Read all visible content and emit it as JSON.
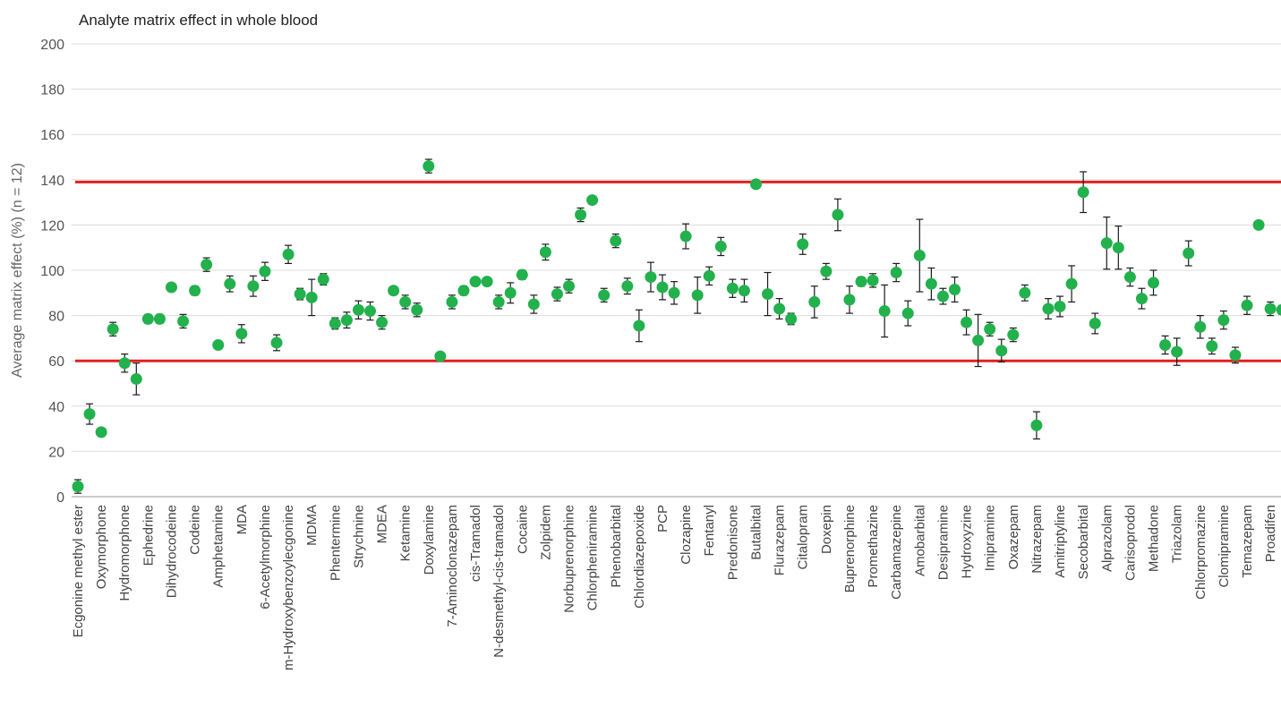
{
  "chart_data": {
    "type": "scatter",
    "title": "Analyte matrix effect in whole blood",
    "ylabel": "Average matrix effect (%) (n = 12)",
    "xlabel": "",
    "ylim": [
      0,
      200
    ],
    "yticks": [
      0,
      20,
      40,
      60,
      80,
      100,
      120,
      140,
      160,
      180,
      200
    ],
    "grid": true,
    "legend": "none",
    "point_color": "#22b14c",
    "reference_line_color": "#e02020",
    "reference_lines": [
      60,
      139
    ],
    "label_every": 2,
    "categories": [
      "Ecgonine methyl ester",
      "",
      "Oxymorphone",
      "",
      "Hydromorphone",
      "",
      "Ephedrine",
      "",
      "Dihydrocodeine",
      "",
      "Codeine",
      "",
      "Amphetamine",
      "",
      "MDA",
      "",
      "6-Acetylmorphine",
      "",
      "m-Hydroxybenzoylecgonine",
      "",
      "MDMA",
      "",
      "Phentermine",
      "",
      "Strychnine",
      "",
      "MDEA",
      "",
      "Ketamine",
      "",
      "Doxylamine",
      "",
      "7-Aminoclonazepam",
      "",
      "cis-Tramadol",
      "",
      "N-desmethyl-cis-tramadol",
      "",
      "Cocaine",
      "",
      "Zolpidem",
      "",
      "Norbuprenorphine",
      "",
      "Chlorpheniramine",
      "",
      "Phenobarbital",
      "",
      "Chlordiazepoxide",
      "",
      "PCP",
      "",
      "Clozapine",
      "",
      "Fentanyl",
      "",
      "Predonisone",
      "",
      "Butalbital",
      "",
      "Flurazepam",
      "",
      "Citalopram",
      "",
      "Doxepin",
      "",
      "Buprenorphine",
      "",
      "Promethazine",
      "",
      "Carbamazepine",
      "",
      "Amobarbital",
      "",
      "Desipramine",
      "",
      "Hydroxyzine",
      "",
      "Imipramine",
      "",
      "Oxazepam",
      "",
      "Nitrazepam",
      "",
      "Amitriptyline",
      "",
      "Secobarbital",
      "",
      "Alprazolam",
      "",
      "Carisoprodol",
      "",
      "Methadone",
      "",
      "Triazolam",
      "",
      "Chlorpromazine",
      "",
      "Clomipramine",
      "",
      "Temazepam",
      "",
      "Proadifen",
      ""
    ],
    "series": [
      {
        "values": [
          4.5,
          36.5,
          28.5,
          74,
          59,
          52,
          78.5,
          78.5,
          92.5,
          77.5,
          91,
          102.5,
          67,
          94,
          72,
          93,
          99.5,
          68,
          107,
          89.5,
          88,
          96,
          76.5,
          78,
          82.5,
          82,
          77,
          91,
          86,
          82.5,
          146,
          62,
          86,
          91,
          95,
          95,
          86,
          90,
          98,
          85,
          108,
          89.5,
          93,
          124.5,
          131,
          89,
          113,
          93,
          75.5,
          97,
          92.5,
          90,
          115,
          89,
          97.5,
          110.5,
          92,
          91,
          138,
          89.5,
          83,
          78.5,
          111.5,
          86,
          99.5,
          124.5,
          87,
          95,
          95.5,
          82,
          99,
          81,
          106.5,
          94,
          88.5,
          91.5,
          77,
          69,
          74,
          64.5,
          71.5,
          90,
          31.5,
          83,
          84,
          94,
          134.5,
          76.5,
          112,
          110,
          97,
          87.5,
          94.5,
          67,
          64,
          107.5,
          75,
          66.5,
          78,
          62.5,
          84.5,
          120,
          83,
          82.5
        ],
        "error_plus": [
          3,
          4.5,
          1.5,
          3,
          4,
          7,
          2,
          2,
          1.5,
          3,
          2,
          3,
          1.5,
          3.5,
          4,
          4.5,
          4,
          3.5,
          4,
          2.5,
          8,
          2.5,
          2.5,
          3.5,
          4,
          4,
          3,
          1,
          3,
          3,
          3,
          1,
          3,
          2,
          1,
          1,
          3,
          4.5,
          2,
          4,
          3.5,
          3,
          3,
          3,
          1.5,
          3,
          3,
          3.5,
          7,
          6.5,
          5.5,
          5,
          5.5,
          8,
          4,
          4,
          4,
          5,
          1.5,
          9.5,
          4.5,
          2.5,
          4.5,
          7,
          3.5,
          7,
          6,
          2,
          3,
          11.5,
          4,
          5.5,
          16,
          7,
          3.5,
          5.5,
          5.5,
          11.5,
          3,
          5,
          3,
          3.5,
          6,
          4.5,
          4.5,
          8,
          9,
          4.5,
          11.5,
          9.5,
          4,
          4.5,
          5.5,
          4,
          6,
          5.5,
          5,
          3.5,
          4,
          3.5,
          4,
          1,
          3,
          2
        ]
      }
    ]
  }
}
